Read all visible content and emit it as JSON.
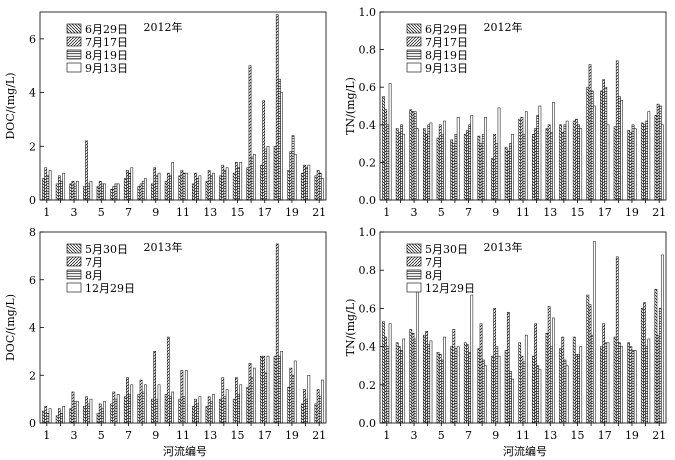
{
  "figure": {
    "x_axis_label": "河流编号"
  },
  "chart_data": [
    {
      "type": "bar",
      "year_label": "2012年",
      "ylabel": "DOC/(mg/L)",
      "ylim": [
        0,
        7
      ],
      "yticks": [
        0,
        2,
        4,
        6
      ],
      "x_tick_labels": [
        "1",
        "3",
        "5",
        "7",
        "9",
        "11",
        "13",
        "15",
        "17",
        "19",
        "21"
      ],
      "categories": [
        "1",
        "2",
        "3",
        "4",
        "5",
        "6",
        "7",
        "8",
        "9",
        "10",
        "11",
        "12",
        "13",
        "14",
        "15",
        "16",
        "17",
        "18",
        "19",
        "20",
        "21"
      ],
      "legend": [
        "6月29日",
        "7月17日",
        "8月19日",
        "9月13日"
      ],
      "series": [
        {
          "name": "6月29日",
          "values": [
            0.8,
            0.6,
            0.6,
            0.5,
            0.5,
            0.4,
            0.8,
            0.5,
            0.6,
            0.7,
            0.9,
            0.6,
            0.7,
            0.9,
            1.0,
            1.2,
            1.3,
            2.0,
            1.1,
            1.0,
            0.9
          ]
        },
        {
          "name": "7月17日",
          "values": [
            1.2,
            0.9,
            0.7,
            2.2,
            0.7,
            0.5,
            1.1,
            0.6,
            1.2,
            1.0,
            1.1,
            1.0,
            1.1,
            1.3,
            1.4,
            5.0,
            3.7,
            6.9,
            1.8,
            1.3,
            1.1
          ]
        },
        {
          "name": "8月19日",
          "values": [
            0.9,
            0.7,
            0.6,
            0.6,
            0.6,
            0.6,
            1.0,
            0.7,
            0.9,
            0.9,
            1.0,
            0.8,
            0.9,
            1.1,
            1.2,
            1.6,
            1.9,
            4.5,
            2.4,
            1.2,
            1.0
          ]
        },
        {
          "name": "9月13日",
          "values": [
            1.1,
            1.0,
            0.7,
            0.7,
            0.6,
            0.6,
            1.2,
            0.8,
            1.0,
            1.4,
            1.0,
            0.9,
            1.0,
            1.2,
            1.4,
            1.7,
            2.0,
            4.0,
            1.7,
            1.3,
            0.8
          ]
        }
      ]
    },
    {
      "type": "bar",
      "year_label": "2012年",
      "ylabel": "TN/(mg/L)",
      "ylim": [
        0,
        1.0
      ],
      "yticks": [
        0,
        0.2,
        0.4,
        0.6,
        0.8,
        1.0
      ],
      "x_tick_labels": [
        "1",
        "3",
        "5",
        "7",
        "9",
        "11",
        "13",
        "15",
        "17",
        "19",
        "21"
      ],
      "categories": [
        "1",
        "2",
        "3",
        "4",
        "5",
        "6",
        "7",
        "8",
        "9",
        "10",
        "11",
        "12",
        "13",
        "14",
        "15",
        "16",
        "17",
        "18",
        "19",
        "20",
        "21"
      ],
      "legend": [
        "6月29日",
        "7月17日",
        "8月19日",
        "9月13日"
      ],
      "series": [
        {
          "name": "6月29日",
          "values": [
            0.55,
            0.38,
            0.48,
            0.38,
            0.33,
            0.32,
            0.35,
            0.34,
            0.22,
            0.28,
            0.43,
            0.35,
            0.38,
            0.4,
            0.42,
            0.6,
            0.58,
            0.39,
            0.37,
            0.41,
            0.45
          ]
        },
        {
          "name": "7月17日",
          "values": [
            0.48,
            0.36,
            0.47,
            0.35,
            0.4,
            0.3,
            0.37,
            0.3,
            0.35,
            0.26,
            0.44,
            0.38,
            0.4,
            0.36,
            0.43,
            0.72,
            0.64,
            0.74,
            0.36,
            0.4,
            0.51
          ]
        },
        {
          "name": "8月19日",
          "values": [
            0.4,
            0.4,
            0.47,
            0.4,
            0.35,
            0.35,
            0.4,
            0.35,
            0.3,
            0.3,
            0.35,
            0.45,
            0.36,
            0.4,
            0.4,
            0.58,
            0.6,
            0.55,
            0.4,
            0.42,
            0.5
          ]
        },
        {
          "name": "9月13日",
          "values": [
            0.62,
            0.35,
            0.38,
            0.41,
            0.42,
            0.44,
            0.45,
            0.44,
            0.49,
            0.35,
            0.47,
            0.5,
            0.52,
            0.42,
            0.38,
            0.5,
            0.4,
            0.53,
            0.38,
            0.47,
            0.4
          ]
        }
      ]
    },
    {
      "type": "bar",
      "year_label": "2013年",
      "ylabel": "DOC/(mg/L)",
      "ylim": [
        0,
        8
      ],
      "yticks": [
        0,
        2,
        4,
        6,
        8
      ],
      "x_tick_labels": [
        "1",
        "3",
        "5",
        "7",
        "9",
        "11",
        "13",
        "15",
        "17",
        "19",
        "21"
      ],
      "categories": [
        "1",
        "2",
        "3",
        "4",
        "5",
        "6",
        "7",
        "8",
        "9",
        "10",
        "11",
        "12",
        "13",
        "14",
        "15",
        "16",
        "17",
        "18",
        "19",
        "20",
        "21"
      ],
      "legend": [
        "5月30日",
        "7月",
        "8月",
        "12月29日"
      ],
      "series": [
        {
          "name": "5月30日",
          "values": [
            0.5,
            0.3,
            0.6,
            0.7,
            0.4,
            0.8,
            1.1,
            1.2,
            1.0,
            1.2,
            1.0,
            0.7,
            0.7,
            1.0,
            1.0,
            1.5,
            2.8,
            2.8,
            1.5,
            0.8,
            0.8
          ]
        },
        {
          "name": "7月",
          "values": [
            0.7,
            0.6,
            1.3,
            1.1,
            0.8,
            1.3,
            1.9,
            1.8,
            3.0,
            3.6,
            2.2,
            1.0,
            1.1,
            1.9,
            1.9,
            2.5,
            2.8,
            7.5,
            2.3,
            1.4,
            1.4
          ]
        },
        {
          "name": "8月",
          "values": [
            0.4,
            0.4,
            0.9,
            0.8,
            0.6,
            1.0,
            1.2,
            1.3,
            1.0,
            1.1,
            1.1,
            0.8,
            0.9,
            1.1,
            1.2,
            1.9,
            2.1,
            2.8,
            2.0,
            1.0,
            1.1
          ]
        },
        {
          "name": "12月29日",
          "values": [
            0.6,
            0.7,
            0.9,
            1.0,
            0.9,
            1.2,
            1.6,
            1.6,
            1.6,
            1.3,
            2.2,
            1.1,
            1.2,
            1.4,
            1.6,
            2.3,
            2.8,
            3.0,
            2.6,
            2.0,
            1.8
          ]
        }
      ]
    },
    {
      "type": "bar",
      "year_label": "2013年",
      "ylabel": "TN/(mg/L)",
      "ylim": [
        0,
        1.0
      ],
      "yticks": [
        0,
        0.2,
        0.4,
        0.6,
        0.8,
        1.0
      ],
      "x_tick_labels": [
        "1",
        "3",
        "5",
        "7",
        "9",
        "11",
        "13",
        "15",
        "17",
        "19",
        "21"
      ],
      "categories": [
        "1",
        "2",
        "3",
        "4",
        "5",
        "6",
        "7",
        "8",
        "9",
        "10",
        "11",
        "12",
        "13",
        "14",
        "15",
        "16",
        "17",
        "18",
        "19",
        "20",
        "21"
      ],
      "legend": [
        "5月30日",
        "7月",
        "8月",
        "12月29日"
      ],
      "series": [
        {
          "name": "5月30日",
          "values": [
            0.53,
            0.42,
            0.49,
            0.46,
            0.37,
            0.4,
            0.42,
            0.39,
            0.35,
            0.38,
            0.42,
            0.35,
            0.47,
            0.39,
            0.45,
            0.67,
            0.4,
            0.45,
            0.42,
            0.6,
            0.7
          ]
        },
        {
          "name": "7月",
          "values": [
            0.45,
            0.4,
            0.47,
            0.48,
            0.36,
            0.49,
            0.41,
            0.52,
            0.6,
            0.58,
            0.35,
            0.52,
            0.61,
            0.45,
            0.36,
            0.62,
            0.52,
            0.87,
            0.4,
            0.63,
            0.46
          ]
        },
        {
          "name": "8月",
          "values": [
            0.4,
            0.38,
            0.44,
            0.41,
            0.33,
            0.39,
            0.37,
            0.33,
            0.4,
            0.27,
            0.32,
            0.3,
            0.4,
            0.33,
            0.36,
            0.46,
            0.42,
            0.42,
            0.38,
            0.4,
            0.6
          ]
        },
        {
          "name": "12月29日",
          "values": [
            0.52,
            0.44,
            0.72,
            0.43,
            0.45,
            0.4,
            0.67,
            0.3,
            0.35,
            0.23,
            0.46,
            0.28,
            0.55,
            0.3,
            0.4,
            0.95,
            0.42,
            0.4,
            0.38,
            0.44,
            0.88
          ]
        }
      ]
    }
  ]
}
